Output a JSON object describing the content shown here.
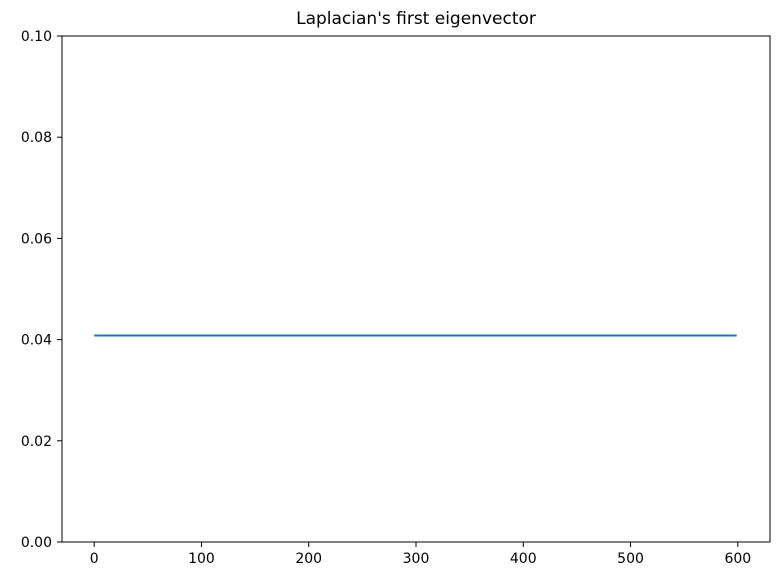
{
  "chart_data": {
    "type": "line",
    "title": "Laplacian's first eigenvector",
    "xlabel": "",
    "ylabel": "",
    "xlim": [
      -30,
      630
    ],
    "ylim": [
      0,
      0.1
    ],
    "x_ticks": [
      0,
      100,
      200,
      300,
      400,
      500,
      600
    ],
    "y_ticks": [
      0.0,
      0.02,
      0.04,
      0.06,
      0.08,
      0.1
    ],
    "x_tick_labels": [
      "0",
      "100",
      "200",
      "300",
      "400",
      "500",
      "600"
    ],
    "y_tick_labels": [
      "0.00",
      "0.02",
      "0.04",
      "0.06",
      "0.08",
      "0.10"
    ],
    "grid": false,
    "legend": "none",
    "series": [
      {
        "color": "#1f77b4",
        "x": [
          0,
          599
        ],
        "y": [
          0.0408,
          0.0408
        ]
      }
    ]
  }
}
